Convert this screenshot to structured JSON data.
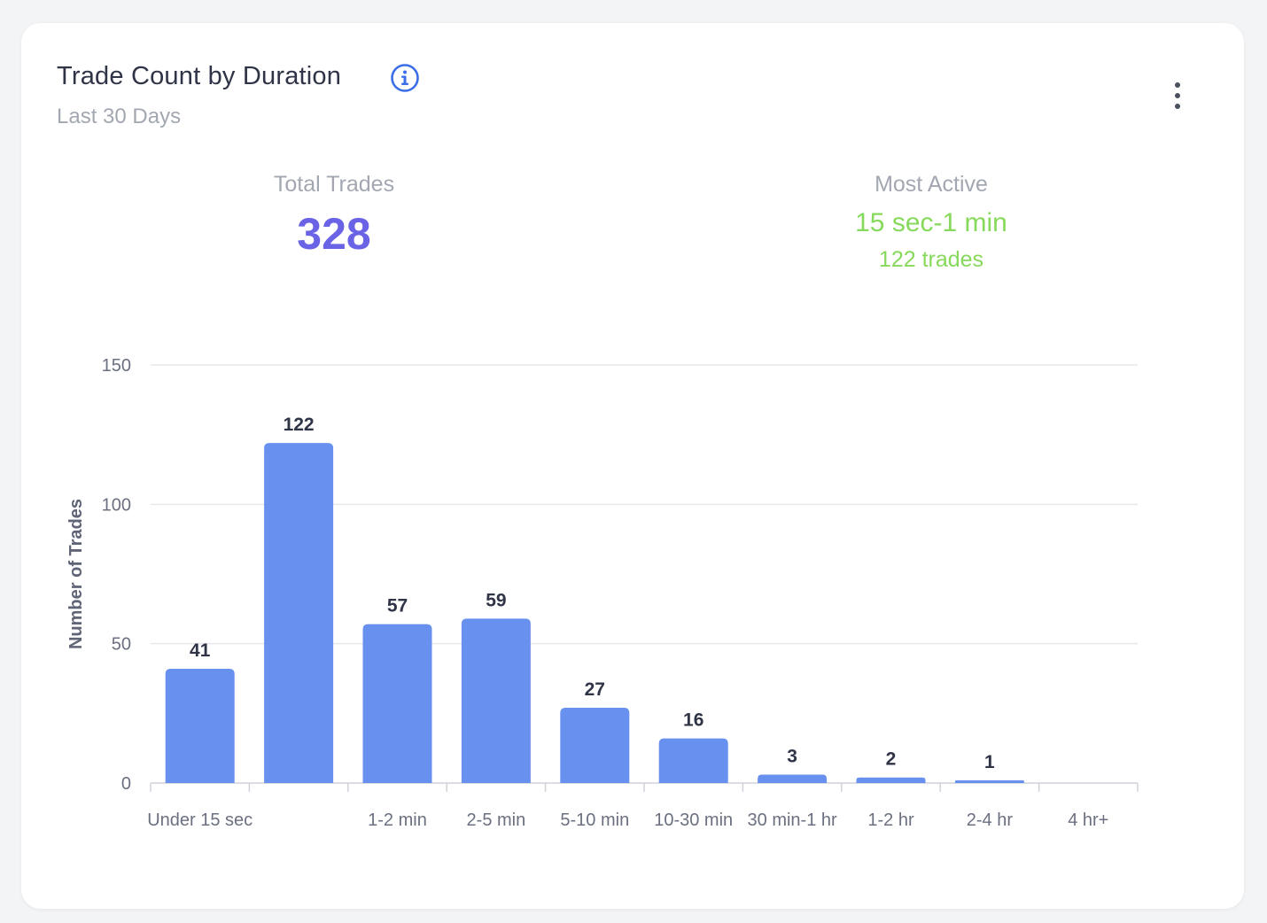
{
  "header": {
    "title": "Trade Count by Duration",
    "subtitle": "Last 30 Days",
    "info_icon": "info-circle-icon",
    "menu_icon": "kebab-menu-icon"
  },
  "stats": {
    "total_label": "Total Trades",
    "total_value": "328",
    "active_label": "Most Active",
    "active_value": "15 sec-1 min",
    "active_sub": "122 trades"
  },
  "colors": {
    "bar": "#6891ef",
    "accent_blue": "#3b6ee8",
    "total_value": "#6a63e6",
    "active_green": "#86d95b",
    "grid": "#e5e7eb"
  },
  "chart_data": {
    "type": "bar",
    "categories": [
      "Under 15 sec",
      "",
      "1-2 min",
      "2-5 min",
      "5-10 min",
      "10-30 min",
      "30 min-1 hr",
      "1-2 hr",
      "2-4 hr",
      "4 hr+"
    ],
    "values": [
      41,
      122,
      57,
      59,
      27,
      16,
      3,
      2,
      1,
      0
    ],
    "data_labels": [
      "41",
      "122",
      "57",
      "59",
      "27",
      "16",
      "3",
      "2",
      "1",
      ""
    ],
    "title": "",
    "xlabel": "",
    "ylabel": "Number of Trades",
    "ylim": [
      0,
      150
    ],
    "yticks": [
      0,
      50,
      100,
      150
    ],
    "grid": true,
    "legend": "none"
  }
}
